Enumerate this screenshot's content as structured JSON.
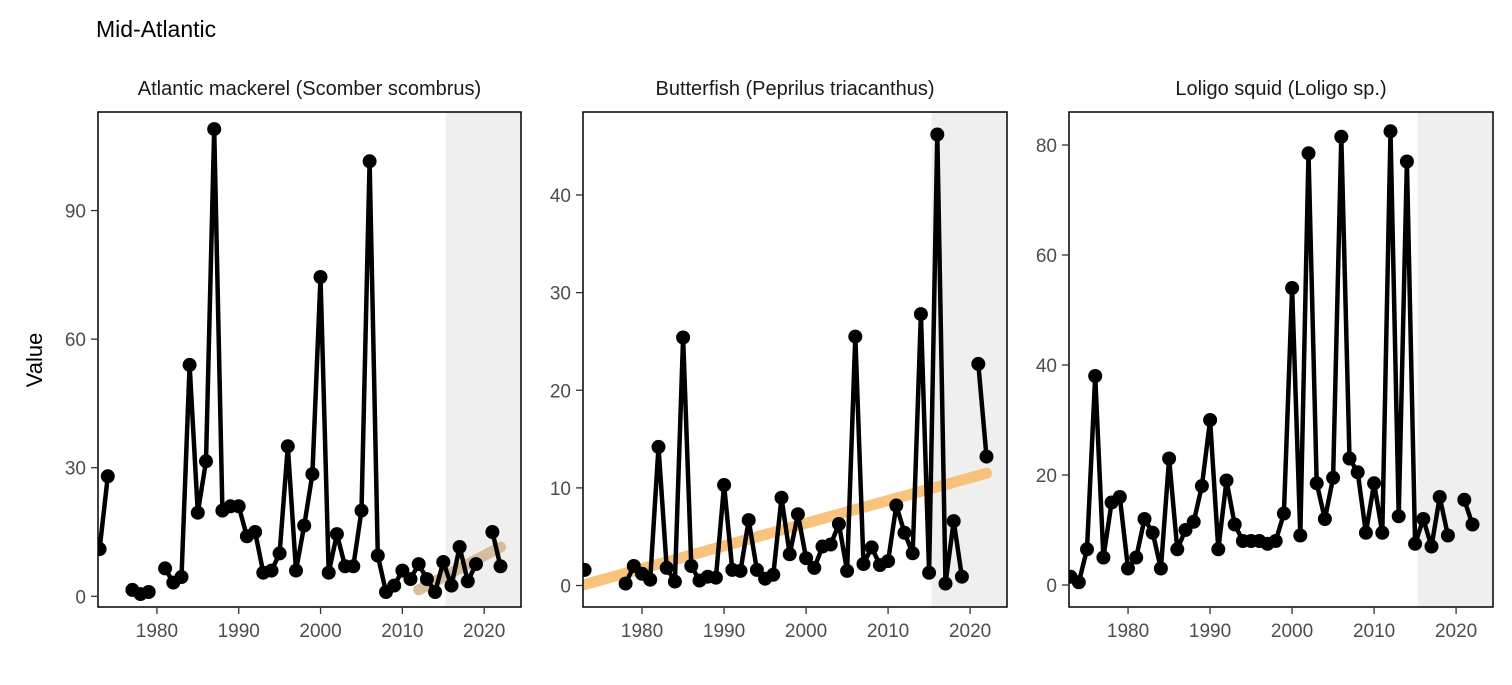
{
  "title": "Mid-Atlantic",
  "ylabel": "Value",
  "colors": {
    "line": "#000000",
    "point": "#000000",
    "shade": "#efefef",
    "trend_increase": "#f9b968",
    "trend_recent": "#d2b48c",
    "frame": "#000000"
  },
  "chart_data": [
    {
      "type": "line",
      "title": "Atlantic mackerel (Scomber scombrus)",
      "xlim": [
        1972.8,
        2024.5
      ],
      "ylim": [
        -2.5,
        113
      ],
      "xticks": [
        1980,
        1990,
        2000,
        2010,
        2020
      ],
      "yticks": [
        0,
        30,
        60,
        90
      ],
      "shade_from": 2015.3,
      "series": [
        {
          "values": [
            [
              1973,
              11
            ],
            [
              1974,
              28
            ]
          ]
        },
        {
          "values": [
            [
              1977,
              1.5
            ],
            [
              1978,
              0.5
            ],
            [
              1979,
              1.0
            ]
          ]
        },
        {
          "values": [
            [
              1981,
              6.5
            ],
            [
              1982,
              3.2
            ],
            [
              1983,
              4.5
            ],
            [
              1984,
              54
            ],
            [
              1985,
              19.5
            ],
            [
              1986,
              31.5
            ],
            [
              1987,
              109
            ],
            [
              1988,
              20
            ],
            [
              1989,
              21
            ],
            [
              1990,
              21
            ],
            [
              1991,
              14
            ],
            [
              1992,
              15
            ],
            [
              1993,
              5.5
            ],
            [
              1994,
              6
            ],
            [
              1995,
              10
            ],
            [
              1996,
              35
            ],
            [
              1997,
              6
            ],
            [
              1998,
              16.5
            ],
            [
              1999,
              28.5
            ],
            [
              2000,
              74.5
            ],
            [
              2001,
              5.5
            ],
            [
              2002,
              14.5
            ],
            [
              2003,
              7
            ],
            [
              2004,
              7
            ],
            [
              2005,
              20
            ],
            [
              2006,
              101.5
            ],
            [
              2007,
              9.5
            ],
            [
              2008,
              1
            ],
            [
              2009,
              2.5
            ],
            [
              2010,
              6
            ],
            [
              2011,
              4
            ],
            [
              2012,
              7.5
            ],
            [
              2013,
              4
            ],
            [
              2014,
              1
            ],
            [
              2015,
              8
            ],
            [
              2016,
              2.5
            ],
            [
              2017,
              11.5
            ],
            [
              2018,
              3.5
            ],
            [
              2019,
              7.5
            ],
            [
              2020,
              null
            ],
            [
              2021,
              15
            ],
            [
              2022,
              7
            ]
          ]
        }
      ],
      "trend": {
        "kind": "recent",
        "from": [
          2012,
          1.5
        ],
        "to": [
          2022,
          11.5
        ]
      }
    },
    {
      "type": "line",
      "title": "Butterfish (Peprilus triacanthus)",
      "xlim": [
        1972.8,
        2024.5
      ],
      "ylim": [
        -2.2,
        48.5
      ],
      "xticks": [
        1980,
        1990,
        2000,
        2010,
        2020
      ],
      "yticks": [
        0,
        10,
        20,
        30,
        40
      ],
      "shade_from": 2015.3,
      "series": [
        {
          "values": [
            [
              1973,
              1.6
            ]
          ]
        },
        {
          "values": [
            [
              1978,
              0.2
            ],
            [
              1979,
              2.0
            ],
            [
              1980,
              1.2
            ],
            [
              1981,
              0.6
            ],
            [
              1982,
              14.2
            ],
            [
              1983,
              1.8
            ],
            [
              1984,
              0.4
            ],
            [
              1985,
              25.4
            ],
            [
              1986,
              2.0
            ],
            [
              1987,
              0.5
            ],
            [
              1988,
              0.9
            ],
            [
              1989,
              0.8
            ],
            [
              1990,
              10.3
            ],
            [
              1991,
              1.6
            ],
            [
              1992,
              1.5
            ],
            [
              1993,
              6.7
            ],
            [
              1994,
              1.6
            ],
            [
              1995,
              0.7
            ],
            [
              1996,
              1.1
            ],
            [
              1997,
              9.0
            ],
            [
              1998,
              3.2
            ],
            [
              1999,
              7.3
            ],
            [
              2000,
              2.8
            ],
            [
              2001,
              1.8
            ],
            [
              2002,
              4.0
            ],
            [
              2003,
              4.2
            ],
            [
              2004,
              6.3
            ],
            [
              2005,
              1.5
            ],
            [
              2006,
              25.5
            ],
            [
              2007,
              2.2
            ],
            [
              2008,
              3.9
            ],
            [
              2009,
              2.1
            ],
            [
              2010,
              2.5
            ],
            [
              2011,
              8.2
            ],
            [
              2012,
              5.4
            ],
            [
              2013,
              3.3
            ],
            [
              2014,
              27.8
            ],
            [
              2015,
              1.3
            ],
            [
              2016,
              46.2
            ],
            [
              2017,
              0.2
            ],
            [
              2018,
              6.6
            ],
            [
              2019,
              0.9
            ]
          ]
        },
        {
          "values": [
            [
              2021,
              22.7
            ],
            [
              2022,
              13.2
            ]
          ]
        }
      ],
      "trend": {
        "kind": "increase",
        "from": [
          1973,
          0.1
        ],
        "to": [
          2022,
          11.5
        ]
      }
    },
    {
      "type": "line",
      "title": "Loligo squid (Loligo sp.)",
      "xlim": [
        1972.8,
        2024.5
      ],
      "ylim": [
        -4,
        86
      ],
      "xticks": [
        1980,
        1990,
        2000,
        2010,
        2020
      ],
      "yticks": [
        0,
        20,
        40,
        60,
        80
      ],
      "shade_from": 2015.3,
      "series": [
        {
          "values": [
            [
              1973,
              1.5
            ],
            [
              1974,
              0.5
            ],
            [
              1975,
              6.5
            ],
            [
              1976,
              38
            ],
            [
              1977,
              5
            ],
            [
              1978,
              15
            ],
            [
              1979,
              16
            ],
            [
              1980,
              3
            ],
            [
              1981,
              5
            ],
            [
              1982,
              12
            ],
            [
              1983,
              9.5
            ],
            [
              1984,
              3
            ],
            [
              1985,
              23
            ],
            [
              1986,
              6.5
            ],
            [
              1987,
              10
            ],
            [
              1988,
              11.5
            ],
            [
              1989,
              18
            ],
            [
              1990,
              30
            ],
            [
              1991,
              6.5
            ],
            [
              1992,
              19
            ],
            [
              1993,
              11
            ],
            [
              1994,
              8
            ],
            [
              1995,
              8
            ],
            [
              1996,
              8
            ],
            [
              1997,
              7.5
            ],
            [
              1998,
              8
            ],
            [
              1999,
              13
            ],
            [
              2000,
              54
            ],
            [
              2001,
              9
            ],
            [
              2002,
              78.5
            ],
            [
              2003,
              18.5
            ],
            [
              2004,
              12
            ],
            [
              2005,
              19.5
            ],
            [
              2006,
              81.5
            ],
            [
              2007,
              23
            ],
            [
              2008,
              20.5
            ],
            [
              2009,
              9.5
            ],
            [
              2010,
              18.5
            ],
            [
              2011,
              9.5
            ],
            [
              2012,
              82.5
            ],
            [
              2013,
              12.5
            ],
            [
              2014,
              77
            ],
            [
              2015,
              7.5
            ],
            [
              2016,
              12
            ],
            [
              2017,
              7
            ],
            [
              2018,
              16
            ],
            [
              2019,
              9
            ]
          ]
        },
        {
          "values": [
            [
              2021,
              15.5
            ],
            [
              2022,
              11
            ]
          ]
        }
      ],
      "trend": null
    }
  ]
}
